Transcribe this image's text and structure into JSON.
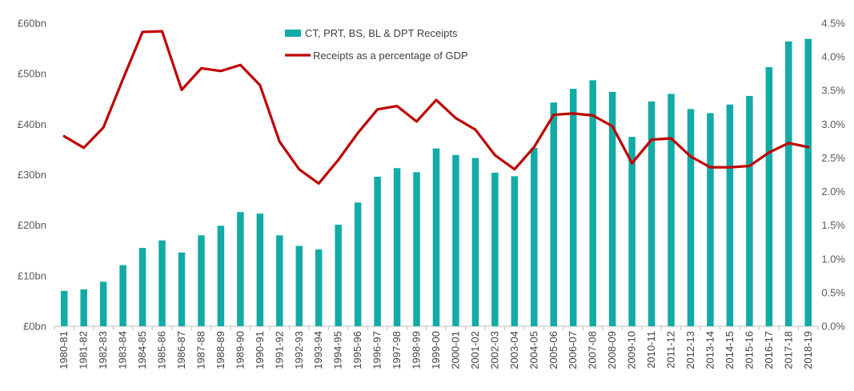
{
  "chart_data": {
    "type": "bar",
    "categories": [
      "1980-81",
      "1981-82",
      "1982-83",
      "1983-84",
      "1984-85",
      "1985-86",
      "1986-87",
      "1987-88",
      "1988-89",
      "1989-90",
      "1990-91",
      "1991-92",
      "1992-93",
      "1993-94",
      "1994-95",
      "1995-96",
      "1996-97",
      "1997-98",
      "1998-99",
      "1999-00",
      "2000-01",
      "2001-02",
      "2002-03",
      "2003-04",
      "2004-05",
      "2005-06",
      "2006-07",
      "2007-08",
      "2008-09",
      "2009-10",
      "2010-11",
      "2011-12",
      "2012-13",
      "2013-14",
      "2014-15",
      "2015-16",
      "2016-17",
      "2017-18",
      "2018-19"
    ],
    "series": [
      {
        "name": "CT, PRT, BS, BL & DPT Receipts",
        "type": "bar",
        "axis": "left",
        "color": "#12ABA6",
        "values": [
          7.0,
          7.3,
          8.8,
          12.1,
          15.5,
          17.0,
          14.6,
          18.0,
          19.9,
          22.6,
          22.3,
          18.0,
          15.9,
          15.2,
          20.1,
          24.5,
          29.6,
          31.3,
          30.5,
          35.2,
          33.9,
          33.3,
          30.4,
          29.7,
          35.3,
          44.3,
          47.0,
          48.7,
          46.4,
          37.5,
          44.5,
          46.0,
          43.0,
          42.2,
          43.9,
          45.6,
          51.3,
          56.4,
          56.9
        ]
      },
      {
        "name": "Receipts as a percentage of GDP",
        "type": "line",
        "axis": "right",
        "color": "#C00000",
        "values": [
          2.82,
          2.65,
          2.95,
          3.67,
          4.37,
          4.38,
          3.51,
          3.83,
          3.79,
          3.88,
          3.58,
          2.74,
          2.33,
          2.12,
          2.47,
          2.87,
          3.22,
          3.27,
          3.04,
          3.36,
          3.09,
          2.92,
          2.54,
          2.33,
          2.66,
          3.14,
          3.16,
          3.13,
          2.97,
          2.42,
          2.77,
          2.79,
          2.52,
          2.36,
          2.36,
          2.38,
          2.58,
          2.72,
          2.66
        ]
      }
    ],
    "y_left": {
      "ylim": [
        0,
        60
      ],
      "ticks": [
        0,
        10,
        20,
        30,
        40,
        50,
        60
      ],
      "tick_labels": [
        "£0bn",
        "£10bn",
        "£20bn",
        "£30bn",
        "£40bn",
        "£50bn",
        "£60bn"
      ]
    },
    "y_right": {
      "ylim": [
        0,
        4.5
      ],
      "ticks": [
        0,
        0.5,
        1.0,
        1.5,
        2.0,
        2.5,
        3.0,
        3.5,
        4.0,
        4.5
      ],
      "tick_labels": [
        "0.0%",
        "0.5%",
        "1.0%",
        "1.5%",
        "2.0%",
        "2.5%",
        "3.0%",
        "3.5%",
        "4.0%",
        "4.5%"
      ]
    },
    "title": "",
    "xlabel": "",
    "ylabel": "",
    "grid": false,
    "legend_position": "top-center"
  }
}
